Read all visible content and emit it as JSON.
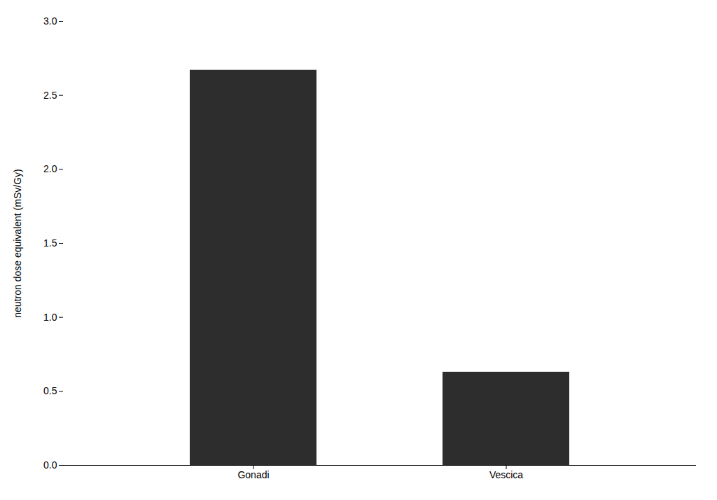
{
  "chart_data": {
    "type": "bar",
    "categories": [
      "Gonadi",
      "Vescica"
    ],
    "values": [
      2.67,
      0.63
    ],
    "color": "#2d2d2d",
    "ylabel": "neutron dose equivalent (mSv/Gy)",
    "ylim": [
      0.0,
      3.0
    ],
    "yticks": [
      {
        "value": 0,
        "label": "0.0"
      },
      0.5,
      {
        "value": 1,
        "label": "1.0"
      },
      1.5,
      {
        "value": 2,
        "label": "2.0"
      },
      2.5,
      {
        "value": 3,
        "label": "3.0"
      }
    ],
    "grid": false
  }
}
